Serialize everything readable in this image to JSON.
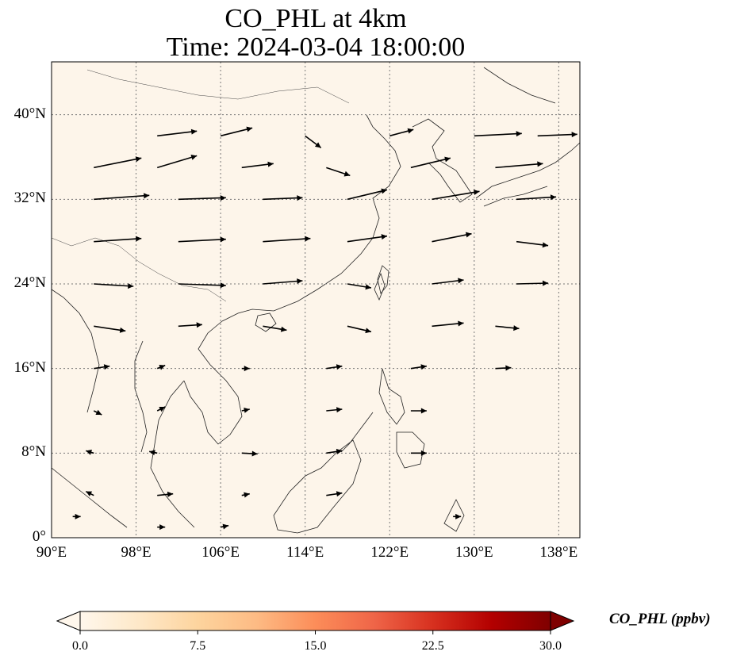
{
  "title": {
    "line1": "CO_PHL at 4km",
    "line2": "Time: 2024-03-04 18:00:00"
  },
  "map": {
    "lat_labels": [
      "40°N",
      "32°N",
      "24°N",
      "16°N",
      "8°N",
      "0°"
    ],
    "lat_values": [
      40,
      32,
      24,
      16,
      8,
      0
    ],
    "lon_labels": [
      "90°E",
      "98°E",
      "106°E",
      "114°E",
      "122°E",
      "130°E",
      "138°E"
    ],
    "lon_values": [
      90,
      98,
      106,
      114,
      122,
      130,
      138
    ],
    "extent": {
      "lon_min": 90,
      "lon_max": 140,
      "lat_min": 0,
      "lat_max": 45
    },
    "gridlines": true,
    "field_color": "#fdf5ea",
    "coast_color": "#222222",
    "wind_vectors": [
      [
        100,
        38,
        5,
        0.6
      ],
      [
        106,
        38,
        4,
        1.0
      ],
      [
        114,
        38,
        2,
        -1.5
      ],
      [
        122,
        38,
        3,
        0.8
      ],
      [
        130,
        38,
        6,
        0.3
      ],
      [
        136,
        38,
        5,
        0.2
      ],
      [
        94,
        35,
        6,
        1.2
      ],
      [
        100,
        35,
        5,
        1.5
      ],
      [
        108,
        35,
        4,
        0.5
      ],
      [
        116,
        35,
        3,
        -1.0
      ],
      [
        124,
        35,
        5,
        1.2
      ],
      [
        132,
        35,
        6,
        0.5
      ],
      [
        94,
        32,
        7,
        0.5
      ],
      [
        102,
        32,
        6,
        0.2
      ],
      [
        110,
        32,
        5,
        0.2
      ],
      [
        118,
        32,
        5,
        1.2
      ],
      [
        126,
        32,
        6,
        1.0
      ],
      [
        134,
        32,
        5,
        0.3
      ],
      [
        94,
        28,
        6,
        0.4
      ],
      [
        102,
        28,
        6,
        0.3
      ],
      [
        110,
        28,
        6,
        0.4
      ],
      [
        118,
        28,
        5,
        0.7
      ],
      [
        126,
        28,
        5,
        1.0
      ],
      [
        134,
        28,
        4,
        -0.5
      ],
      [
        94,
        24,
        5,
        -0.3
      ],
      [
        102,
        24,
        6,
        -0.2
      ],
      [
        110,
        24,
        5,
        0.4
      ],
      [
        118,
        24,
        3,
        -0.5
      ],
      [
        126,
        24,
        4,
        0.5
      ],
      [
        134,
        24,
        4,
        0.1
      ],
      [
        94,
        20,
        4,
        -0.6
      ],
      [
        102,
        20,
        3,
        0.2
      ],
      [
        110,
        20,
        3,
        -0.5
      ],
      [
        118,
        20,
        3,
        -0.7
      ],
      [
        126,
        20,
        4,
        0.4
      ],
      [
        132,
        20,
        3,
        -0.3
      ],
      [
        94,
        16,
        2,
        0.3
      ],
      [
        100,
        16,
        1,
        0.4
      ],
      [
        108,
        16,
        1,
        0.0
      ],
      [
        116,
        16,
        2,
        0.3
      ],
      [
        124,
        16,
        2,
        0.3
      ],
      [
        132,
        16,
        2,
        0.1
      ],
      [
        94,
        12,
        1,
        -0.5
      ],
      [
        100,
        12,
        1,
        0.5
      ],
      [
        108,
        12,
        1,
        0.2
      ],
      [
        116,
        12,
        2,
        0.2
      ],
      [
        124,
        12,
        2,
        0.0
      ],
      [
        94,
        8,
        -1,
        0.3
      ],
      [
        100,
        8,
        -1,
        0.2
      ],
      [
        108,
        8,
        2,
        -0.1
      ],
      [
        116,
        8,
        2,
        0.3
      ],
      [
        124,
        8,
        2,
        0.0
      ],
      [
        94,
        4,
        -1,
        0.5
      ],
      [
        100,
        4,
        2,
        0.2
      ],
      [
        108,
        4,
        1,
        0.2
      ],
      [
        116,
        4,
        2,
        0.3
      ],
      [
        128,
        2,
        1,
        0.0
      ],
      [
        92,
        2,
        1,
        0.0
      ],
      [
        100,
        1,
        1,
        0.0
      ],
      [
        106,
        1,
        1,
        0.2
      ]
    ]
  },
  "colorbar": {
    "title": "CO_PHL (ppbv)",
    "ticks": [
      "0.0",
      "7.5",
      "15.0",
      "22.5",
      "30.0"
    ],
    "tick_values": [
      0,
      7.5,
      15,
      22.5,
      30
    ],
    "vmin": 0,
    "vmax": 30,
    "colormap": "OrRd",
    "stops": [
      "#fff7ec",
      "#fee8c8",
      "#fdd49e",
      "#fdbb84",
      "#fc8d59",
      "#ef6548",
      "#d7301f",
      "#b30000",
      "#7f0000"
    ],
    "extend": "both"
  }
}
